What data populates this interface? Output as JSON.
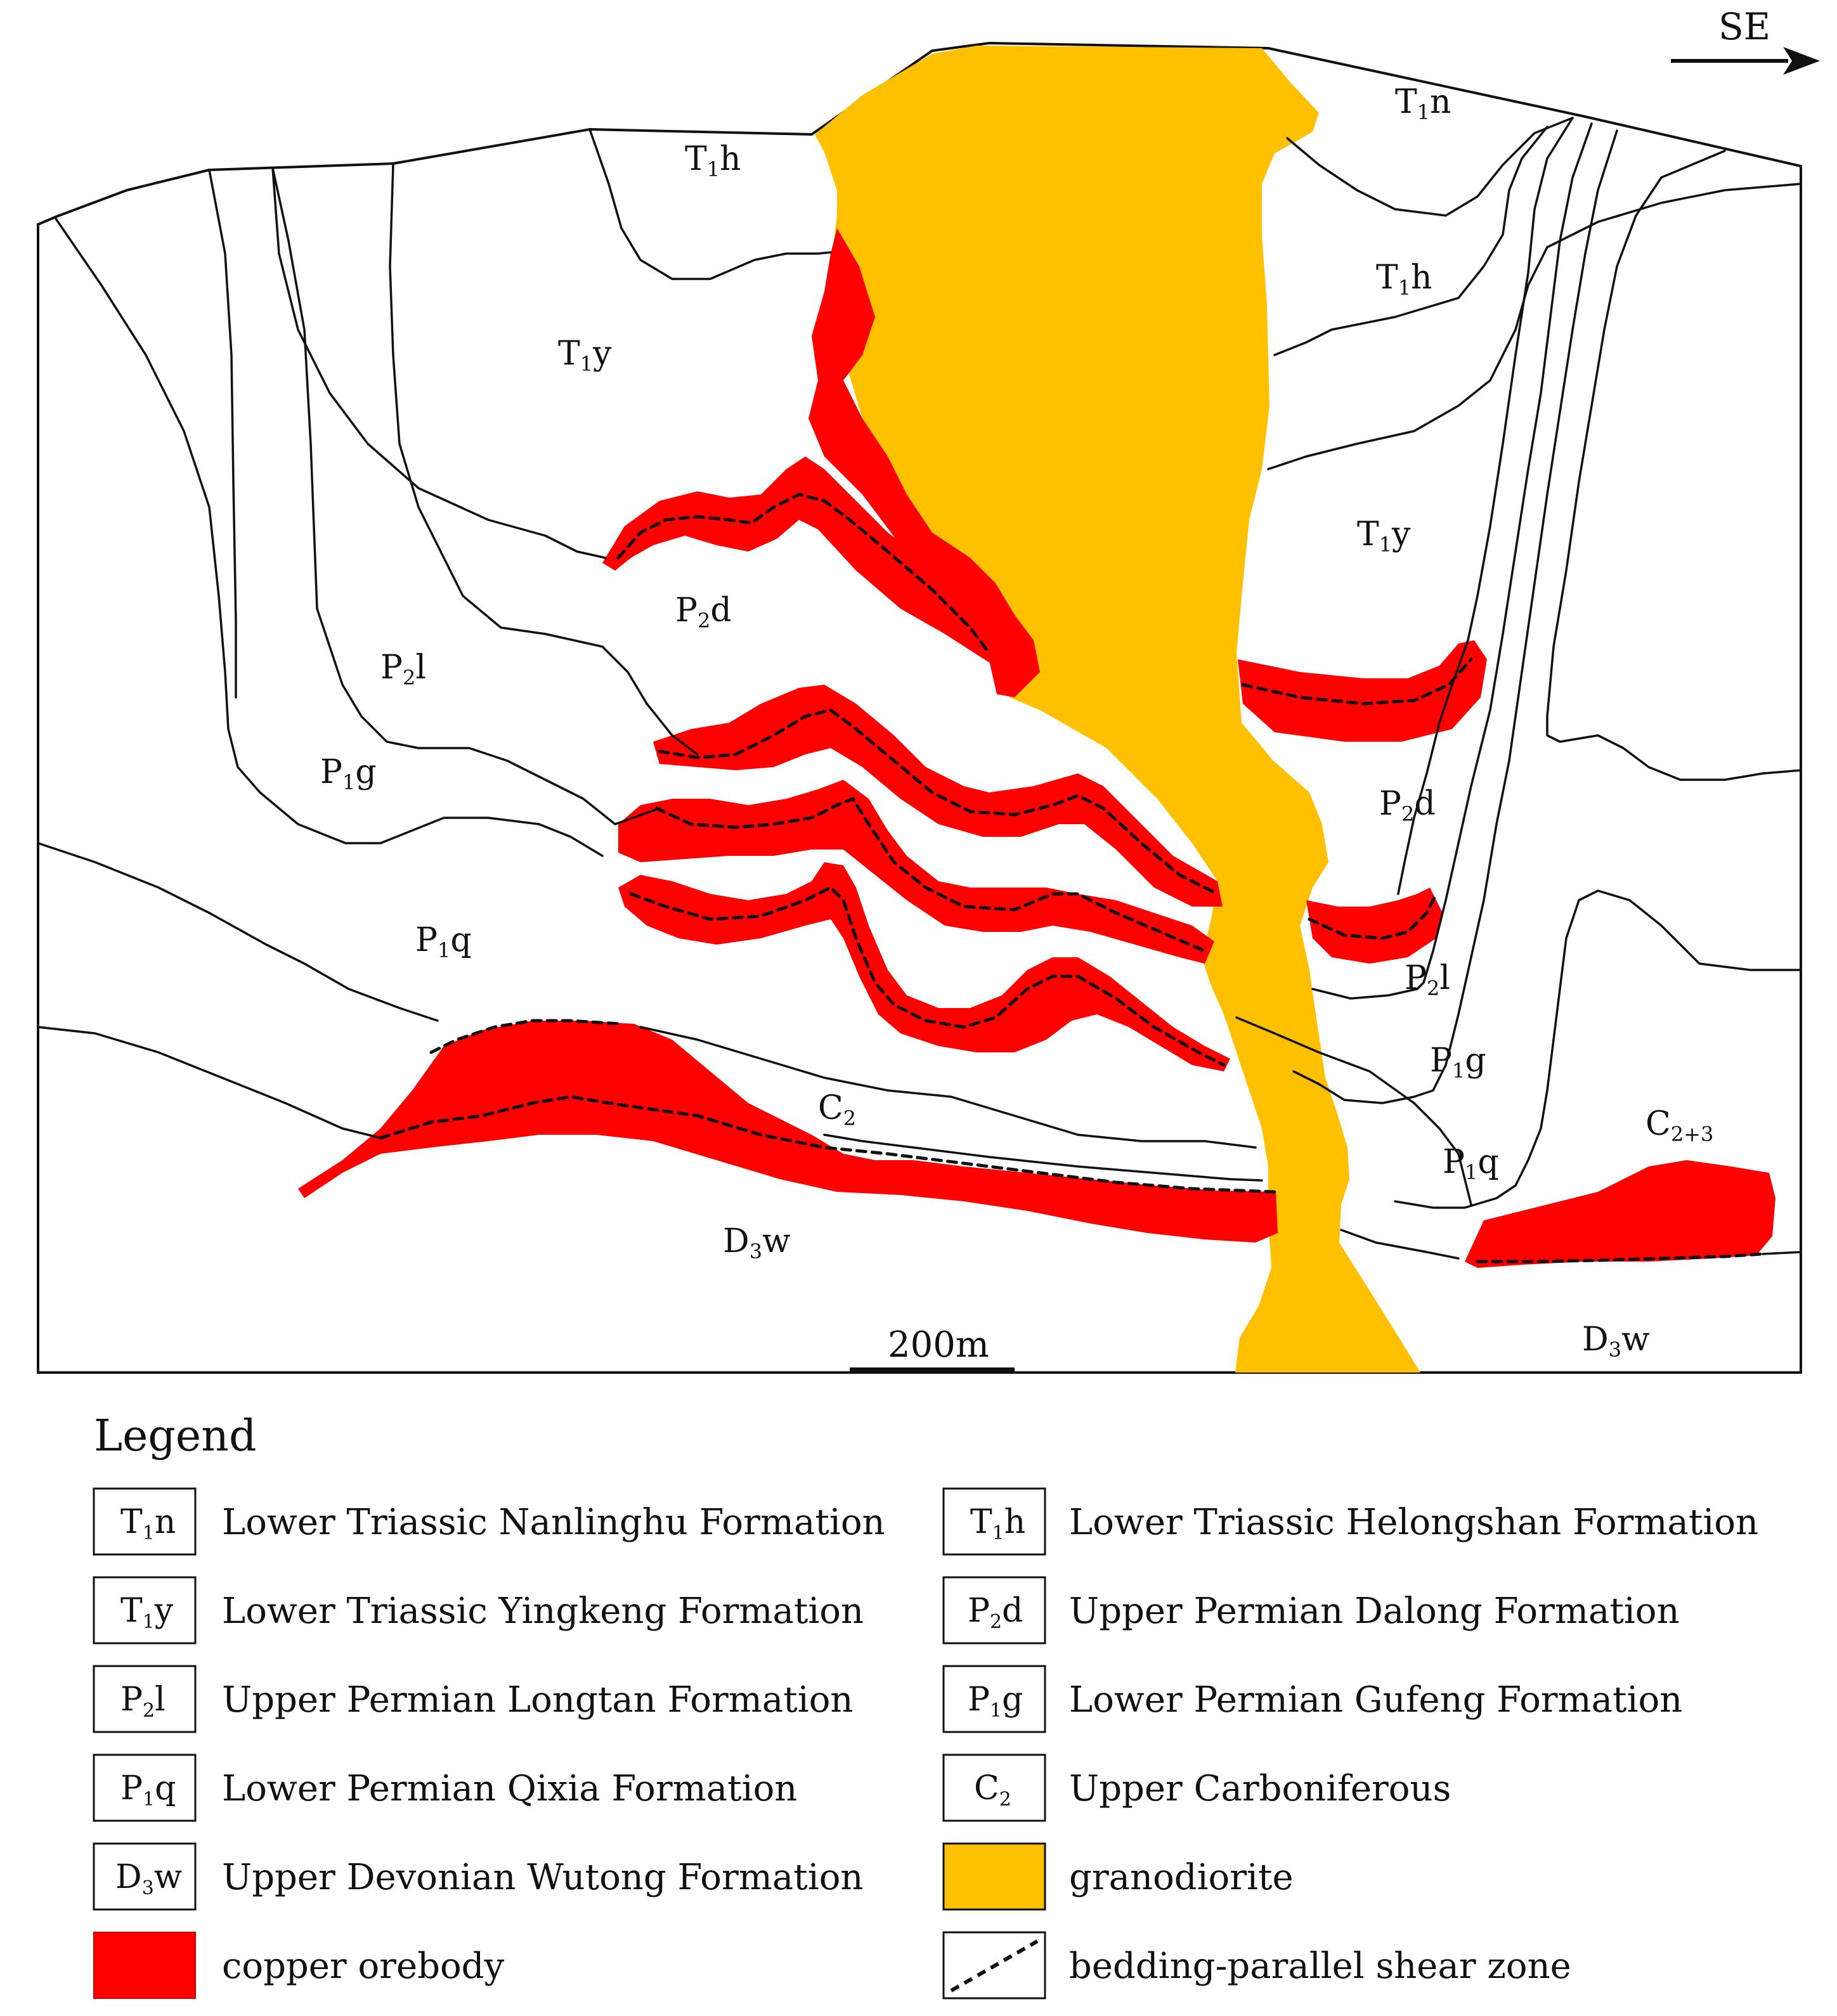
{
  "direction": {
    "label": "SE"
  },
  "scale_bar": {
    "label": "200m"
  },
  "section_labels": {
    "t1n": {
      "main": "T",
      "sub": "1",
      "rest": "n"
    },
    "t1h_left": {
      "main": "T",
      "sub": "1",
      "rest": "h"
    },
    "t1h_right": {
      "main": "T",
      "sub": "1",
      "rest": "h"
    },
    "t1y_left": {
      "main": "T",
      "sub": "1",
      "rest": "y"
    },
    "t1y_right": {
      "main": "T",
      "sub": "1",
      "rest": "y"
    },
    "p2d_left": {
      "main": "P",
      "sub": "2",
      "rest": "d"
    },
    "p2d_right": {
      "main": "P",
      "sub": "2",
      "rest": "d"
    },
    "p2l_left": {
      "main": "P",
      "sub": "2",
      "rest": "l"
    },
    "p2l_right": {
      "main": "P",
      "sub": "2",
      "rest": "l"
    },
    "p1g_left": {
      "main": "P",
      "sub": "1",
      "rest": "g"
    },
    "p1g_right": {
      "main": "P",
      "sub": "1",
      "rest": "g"
    },
    "p1q_left": {
      "main": "P",
      "sub": "1",
      "rest": "q"
    },
    "p1q_right": {
      "main": "P",
      "sub": "1",
      "rest": "q"
    },
    "c2": {
      "main": "C",
      "sub": "2",
      "rest": ""
    },
    "c23": {
      "main": "C",
      "sub": "2+3",
      "rest": ""
    },
    "d3w_left": {
      "main": "D",
      "sub": "3",
      "rest": "w"
    },
    "d3w_right": {
      "main": "D",
      "sub": "3",
      "rest": "w"
    }
  },
  "legend": {
    "title": "Legend",
    "items": [
      {
        "main": "T",
        "sub": "1",
        "rest": "n",
        "text": "Lower Triassic Nanlinghu Formation"
      },
      {
        "main": "T",
        "sub": "1",
        "rest": "h",
        "text": "Lower Triassic Helongshan Formation"
      },
      {
        "main": "T",
        "sub": "1",
        "rest": "y",
        "text": "Lower Triassic Yingkeng Formation"
      },
      {
        "main": "P",
        "sub": "2",
        "rest": "d",
        "text": "Upper Permian Dalong Formation"
      },
      {
        "main": "P",
        "sub": "2",
        "rest": "l",
        "text": "Upper Permian Longtan Formation"
      },
      {
        "main": "P",
        "sub": "1",
        "rest": "g",
        "text": "Lower Permian Gufeng Formation"
      },
      {
        "main": "P",
        "sub": "1",
        "rest": "q",
        "text": "Lower Permian Qixia Formation"
      },
      {
        "main": "C",
        "sub": "2",
        "rest": "",
        "text": "Upper Carboniferous"
      },
      {
        "main": "D",
        "sub": "3",
        "rest": "w",
        "text": "Upper Devonian Wutong Formation"
      },
      {
        "main": "",
        "sub": "",
        "rest": "",
        "text": "granodiorite"
      },
      {
        "main": "",
        "sub": "",
        "rest": "",
        "text": "copper orebody"
      },
      {
        "main": "",
        "sub": "",
        "rest": "",
        "text": "bedding-parallel shear zone"
      }
    ]
  },
  "colors": {
    "ore": "#ff0000",
    "granodiorite": "#ffc000",
    "line": "#111111"
  }
}
